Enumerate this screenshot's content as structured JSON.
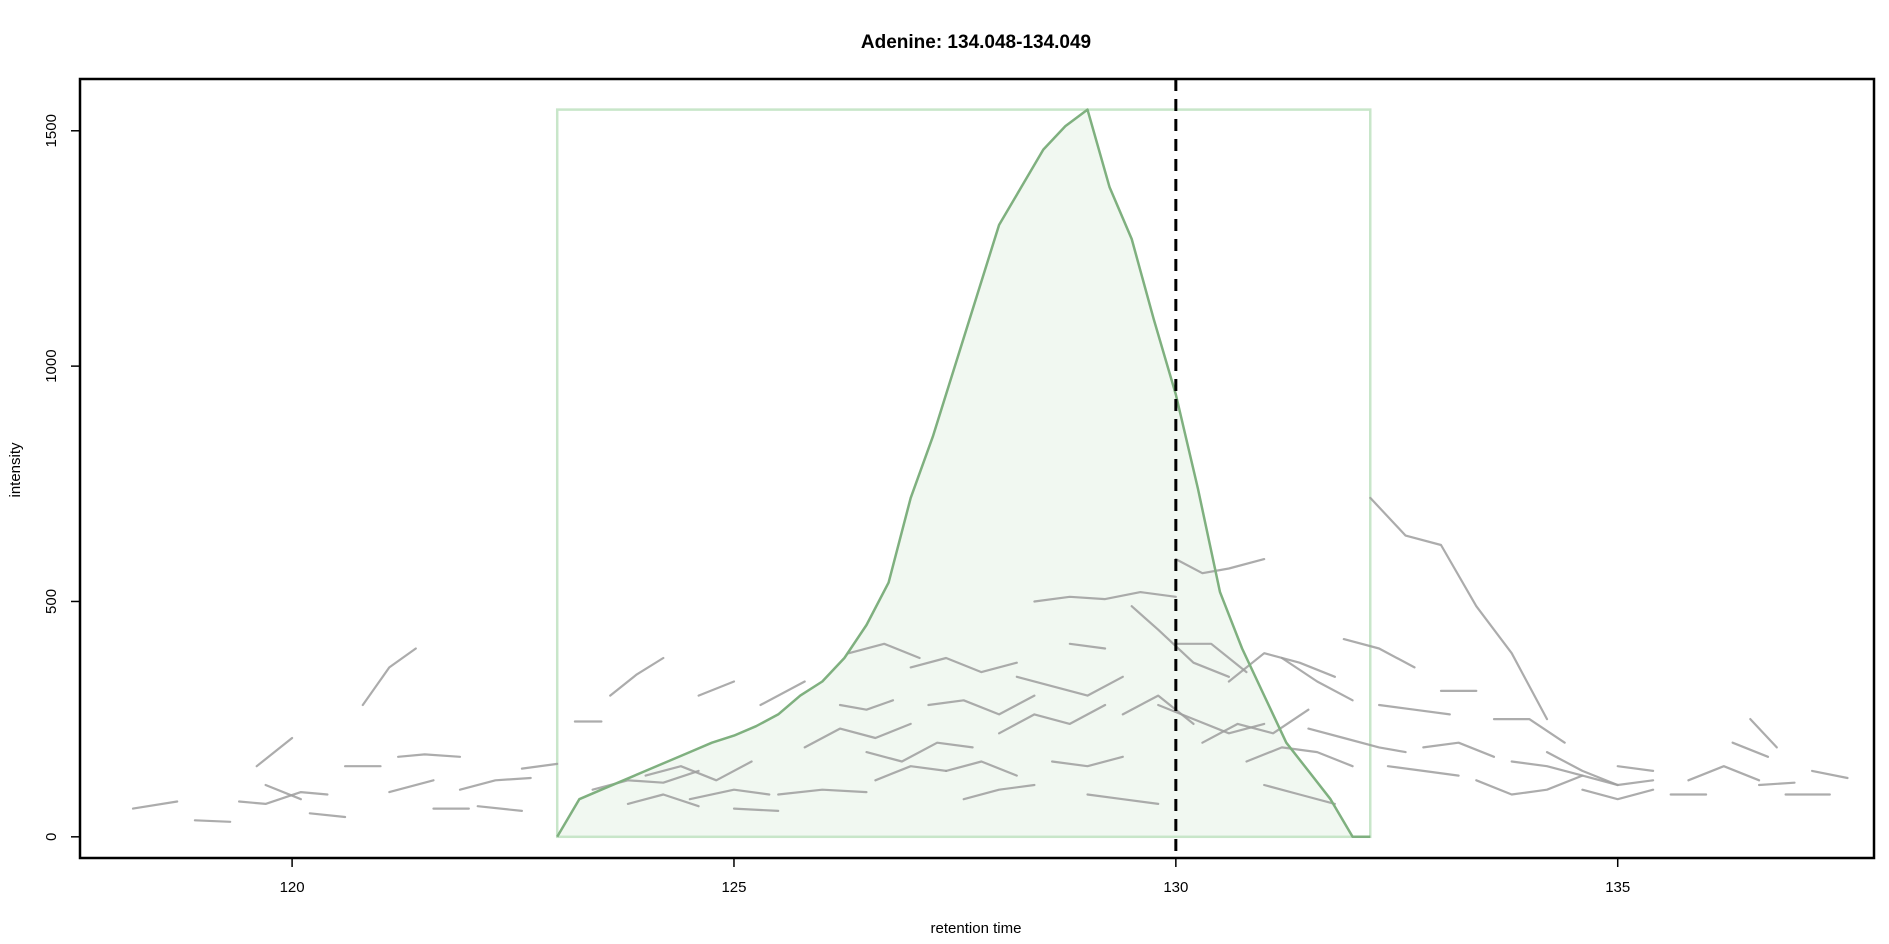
{
  "chart_data": {
    "type": "line",
    "title": "Adenine: 134.048-134.049",
    "xlabel": "retention time",
    "ylabel": "intensity",
    "xlim": [
      117.6,
      137.9
    ],
    "ylim": [
      -45,
      1610
    ],
    "x_ticks": [
      120,
      125,
      130,
      135
    ],
    "y_ticks": [
      0,
      500,
      1000,
      1500
    ],
    "grid": false,
    "legend": "none",
    "reference_line": {
      "x": 130.0,
      "style": "dashed",
      "color": "#000000"
    },
    "integration_box": {
      "x": [
        123.0,
        132.2
      ],
      "y": [
        0,
        1545
      ],
      "color": "#c8e6c9"
    },
    "series": [
      {
        "color": "#7fb07f",
        "fill": "#f1f8f1",
        "x": [
          123.0,
          123.25,
          123.5,
          123.75,
          124.0,
          124.25,
          124.5,
          124.75,
          125.0,
          125.25,
          125.5,
          125.75,
          126.0,
          126.25,
          126.5,
          126.75,
          127.0,
          127.25,
          127.5,
          127.75,
          128.0,
          128.25,
          128.5,
          128.75,
          129.0,
          129.25,
          129.5,
          129.75,
          130.0,
          130.25,
          130.5,
          130.75,
          131.0,
          131.25,
          131.5,
          131.75,
          132.0,
          132.2
        ],
        "y": [
          0,
          80,
          100,
          120,
          140,
          160,
          180,
          200,
          215,
          235,
          260,
          300,
          330,
          380,
          450,
          540,
          720,
          850,
          1000,
          1150,
          1300,
          1380,
          1460,
          1510,
          1545,
          1380,
          1270,
          1100,
          940,
          740,
          520,
          400,
          300,
          200,
          140,
          80,
          0,
          0
        ]
      },
      {
        "color": "#9e9e9e",
        "x": [
          118.2,
          118.7
        ],
        "y": [
          60,
          75
        ]
      },
      {
        "color": "#9e9e9e",
        "x": [
          118.9,
          119.3
        ],
        "y": [
          35,
          32
        ]
      },
      {
        "color": "#9e9e9e",
        "x": [
          119.4,
          119.7,
          120.1,
          120.4
        ],
        "y": [
          75,
          70,
          95,
          90
        ]
      },
      {
        "color": "#9e9e9e",
        "x": [
          119.6,
          120.0
        ],
        "y": [
          150,
          210
        ]
      },
      {
        "color": "#9e9e9e",
        "x": [
          119.7,
          120.1
        ],
        "y": [
          110,
          80
        ]
      },
      {
        "color": "#9e9e9e",
        "x": [
          120.2,
          120.6
        ],
        "y": [
          50,
          42
        ]
      },
      {
        "color": "#9e9e9e",
        "x": [
          120.6,
          121.0
        ],
        "y": [
          150,
          150
        ]
      },
      {
        "color": "#9e9e9e",
        "x": [
          120.8,
          121.1,
          121.4
        ],
        "y": [
          280,
          360,
          400
        ]
      },
      {
        "color": "#9e9e9e",
        "x": [
          121.1,
          121.6
        ],
        "y": [
          95,
          120
        ]
      },
      {
        "color": "#9e9e9e",
        "x": [
          121.2,
          121.5,
          121.9
        ],
        "y": [
          170,
          175,
          170
        ]
      },
      {
        "color": "#9e9e9e",
        "x": [
          121.6,
          122.0
        ],
        "y": [
          60,
          60
        ]
      },
      {
        "color": "#9e9e9e",
        "x": [
          121.9,
          122.3,
          122.7
        ],
        "y": [
          100,
          120,
          125
        ]
      },
      {
        "color": "#9e9e9e",
        "x": [
          122.1,
          122.6
        ],
        "y": [
          65,
          55
        ]
      },
      {
        "color": "#9e9e9e",
        "x": [
          122.6,
          123.0
        ],
        "y": [
          145,
          155
        ]
      },
      {
        "color": "#9e9e9e",
        "x": [
          123.2,
          123.5
        ],
        "y": [
          245,
          245
        ]
      },
      {
        "color": "#9e9e9e",
        "x": [
          123.6,
          123.9,
          124.2
        ],
        "y": [
          300,
          345,
          380
        ]
      },
      {
        "color": "#9e9e9e",
        "x": [
          123.4,
          123.8,
          124.2,
          124.6
        ],
        "y": [
          100,
          120,
          115,
          140
        ]
      },
      {
        "color": "#9e9e9e",
        "x": [
          123.8,
          124.2,
          124.6
        ],
        "y": [
          70,
          90,
          65
        ]
      },
      {
        "color": "#9e9e9e",
        "x": [
          124.0,
          124.4,
          124.8,
          125.2
        ],
        "y": [
          130,
          150,
          120,
          160
        ]
      },
      {
        "color": "#9e9e9e",
        "x": [
          124.5,
          125.0,
          125.4
        ],
        "y": [
          80,
          100,
          90
        ]
      },
      {
        "color": "#9e9e9e",
        "x": [
          124.6,
          125.0
        ],
        "y": [
          300,
          330
        ]
      },
      {
        "color": "#9e9e9e",
        "x": [
          125.0,
          125.5
        ],
        "y": [
          60,
          55
        ]
      },
      {
        "color": "#9e9e9e",
        "x": [
          125.3,
          125.8
        ],
        "y": [
          280,
          330
        ]
      },
      {
        "color": "#9e9e9e",
        "x": [
          125.5,
          126.0,
          126.5
        ],
        "y": [
          90,
          100,
          95
        ]
      },
      {
        "color": "#9e9e9e",
        "x": [
          125.8,
          126.2,
          126.6,
          127.0
        ],
        "y": [
          190,
          230,
          210,
          240
        ]
      },
      {
        "color": "#9e9e9e",
        "x": [
          126.2,
          126.5,
          126.8
        ],
        "y": [
          280,
          270,
          290
        ]
      },
      {
        "color": "#9e9e9e",
        "x": [
          126.3,
          126.7,
          127.1
        ],
        "y": [
          390,
          410,
          380
        ]
      },
      {
        "color": "#9e9e9e",
        "x": [
          126.5,
          126.9,
          127.3,
          127.7
        ],
        "y": [
          180,
          160,
          200,
          190
        ]
      },
      {
        "color": "#9e9e9e",
        "x": [
          126.6,
          127.0,
          127.4
        ],
        "y": [
          120,
          150,
          140
        ]
      },
      {
        "color": "#9e9e9e",
        "x": [
          127.0,
          127.4,
          127.8,
          128.2
        ],
        "y": [
          360,
          380,
          350,
          370
        ]
      },
      {
        "color": "#9e9e9e",
        "x": [
          127.2,
          127.6,
          128.0,
          128.4
        ],
        "y": [
          280,
          290,
          260,
          300
        ]
      },
      {
        "color": "#9e9e9e",
        "x": [
          127.4,
          127.8,
          128.2
        ],
        "y": [
          140,
          160,
          130
        ]
      },
      {
        "color": "#9e9e9e",
        "x": [
          127.6,
          128.0,
          128.4
        ],
        "y": [
          80,
          100,
          110
        ]
      },
      {
        "color": "#9e9e9e",
        "x": [
          128.0,
          128.4,
          128.8,
          129.2
        ],
        "y": [
          220,
          260,
          240,
          280
        ]
      },
      {
        "color": "#9e9e9e",
        "x": [
          128.2,
          128.6,
          129.0,
          129.4
        ],
        "y": [
          340,
          320,
          300,
          340
        ]
      },
      {
        "color": "#9e9e9e",
        "x": [
          128.4,
          128.8,
          129.2,
          129.6,
          130.0
        ],
        "y": [
          500,
          510,
          505,
          520,
          510
        ]
      },
      {
        "color": "#9e9e9e",
        "x": [
          128.6,
          129.0,
          129.4
        ],
        "y": [
          160,
          150,
          170
        ]
      },
      {
        "color": "#9e9e9e",
        "x": [
          128.8,
          129.2
        ],
        "y": [
          410,
          400
        ]
      },
      {
        "color": "#9e9e9e",
        "x": [
          129.0,
          129.4,
          129.8
        ],
        "y": [
          90,
          80,
          70
        ]
      },
      {
        "color": "#9e9e9e",
        "x": [
          129.4,
          129.8,
          130.2
        ],
        "y": [
          260,
          300,
          240
        ]
      },
      {
        "color": "#9e9e9e",
        "x": [
          129.5,
          129.8,
          130.2,
          130.6
        ],
        "y": [
          490,
          440,
          370,
          340
        ]
      },
      {
        "color": "#9e9e9e",
        "x": [
          129.8,
          130.2,
          130.6,
          131.0
        ],
        "y": [
          280,
          250,
          220,
          240
        ]
      },
      {
        "color": "#9e9e9e",
        "x": [
          130.0,
          130.3,
          130.6,
          131.0
        ],
        "y": [
          590,
          560,
          570,
          590
        ]
      },
      {
        "color": "#9e9e9e",
        "x": [
          130.0,
          130.4,
          130.8
        ],
        "y": [
          410,
          410,
          350
        ]
      },
      {
        "color": "#9e9e9e",
        "x": [
          130.3,
          130.7,
          131.1,
          131.5
        ],
        "y": [
          200,
          240,
          220,
          270
        ]
      },
      {
        "color": "#9e9e9e",
        "x": [
          130.6,
          131.0,
          131.4,
          131.8
        ],
        "y": [
          330,
          390,
          370,
          340
        ]
      },
      {
        "color": "#9e9e9e",
        "x": [
          130.8,
          131.2,
          131.6,
          132.0
        ],
        "y": [
          160,
          190,
          180,
          150
        ]
      },
      {
        "color": "#9e9e9e",
        "x": [
          131.0,
          131.4,
          131.8
        ],
        "y": [
          110,
          90,
          70
        ]
      },
      {
        "color": "#9e9e9e",
        "x": [
          131.2,
          131.6,
          132.0
        ],
        "y": [
          380,
          330,
          290
        ]
      },
      {
        "color": "#9e9e9e",
        "x": [
          131.5,
          131.9,
          132.3,
          132.6
        ],
        "y": [
          230,
          210,
          190,
          180
        ]
      },
      {
        "color": "#9e9e9e",
        "x": [
          131.9,
          132.3,
          132.7
        ],
        "y": [
          420,
          400,
          360
        ]
      },
      {
        "color": "#9e9e9e",
        "x": [
          132.2,
          132.6,
          133.0,
          133.4,
          133.8,
          134.2
        ],
        "y": [
          720,
          640,
          620,
          490,
          390,
          250
        ]
      },
      {
        "color": "#9e9e9e",
        "x": [
          132.3,
          132.7,
          133.1
        ],
        "y": [
          280,
          270,
          260
        ]
      },
      {
        "color": "#9e9e9e",
        "x": [
          132.4,
          132.8,
          133.2
        ],
        "y": [
          150,
          140,
          130
        ]
      },
      {
        "color": "#9e9e9e",
        "x": [
          132.8,
          133.2,
          133.6
        ],
        "y": [
          190,
          200,
          170
        ]
      },
      {
        "color": "#9e9e9e",
        "x": [
          133.0,
          133.4
        ],
        "y": [
          310,
          310
        ]
      },
      {
        "color": "#9e9e9e",
        "x": [
          133.4,
          133.8,
          134.2,
          134.6
        ],
        "y": [
          120,
          90,
          100,
          130
        ]
      },
      {
        "color": "#9e9e9e",
        "x": [
          133.6,
          134.0,
          134.4
        ],
        "y": [
          250,
          250,
          200
        ]
      },
      {
        "color": "#9e9e9e",
        "x": [
          133.8,
          134.2,
          134.6,
          135.0
        ],
        "y": [
          160,
          150,
          130,
          110
        ]
      },
      {
        "color": "#9e9e9e",
        "x": [
          134.2,
          134.6,
          135.0,
          135.4
        ],
        "y": [
          180,
          140,
          110,
          120
        ]
      },
      {
        "color": "#9e9e9e",
        "x": [
          134.6,
          135.0,
          135.4
        ],
        "y": [
          100,
          80,
          100
        ]
      },
      {
        "color": "#9e9e9e",
        "x": [
          135.0,
          135.4
        ],
        "y": [
          150,
          140
        ]
      },
      {
        "color": "#9e9e9e",
        "x": [
          135.6,
          136.0
        ],
        "y": [
          90,
          90
        ]
      },
      {
        "color": "#9e9e9e",
        "x": [
          135.8,
          136.2,
          136.6
        ],
        "y": [
          120,
          150,
          120
        ]
      },
      {
        "color": "#9e9e9e",
        "x": [
          136.3,
          136.7
        ],
        "y": [
          200,
          170
        ]
      },
      {
        "color": "#9e9e9e",
        "x": [
          136.5,
          136.8
        ],
        "y": [
          250,
          190
        ]
      },
      {
        "color": "#9e9e9e",
        "x": [
          136.6,
          137.0
        ],
        "y": [
          110,
          115
        ]
      },
      {
        "color": "#9e9e9e",
        "x": [
          136.9,
          137.4
        ],
        "y": [
          90,
          90
        ]
      },
      {
        "color": "#9e9e9e",
        "x": [
          137.2,
          137.6
        ],
        "y": [
          140,
          125
        ]
      }
    ]
  }
}
